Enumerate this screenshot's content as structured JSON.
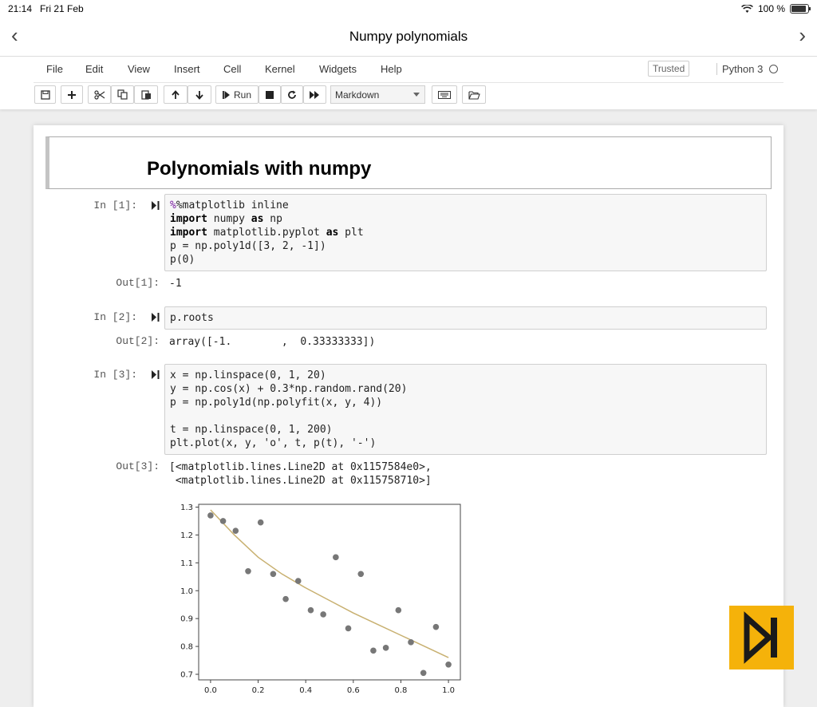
{
  "status": {
    "time": "21:14",
    "date": "Fri 21 Feb",
    "battery": "100 %"
  },
  "nav": {
    "title": "Numpy polynomials",
    "back": "‹",
    "forward": "›"
  },
  "menu": [
    "File",
    "Edit",
    "View",
    "Insert",
    "Cell",
    "Kernel",
    "Widgets",
    "Help"
  ],
  "header": {
    "trusted": "Trusted",
    "kernel": "Python 3"
  },
  "toolbar": {
    "run_label": "Run",
    "cell_type": "Markdown"
  },
  "notebook": {
    "heading": "Polynomials with numpy",
    "cells": [
      {
        "in_prompt": "In [1]:",
        "code": [
          "%matplotlib inline",
          "import numpy as np",
          "import matplotlib.pyplot as plt",
          "p = np.poly1d([3, 2, -1])",
          "p(0)"
        ],
        "out_prompt": "Out[1]:",
        "output": [
          "-1"
        ]
      },
      {
        "in_prompt": "In [2]:",
        "code": [
          "p.roots"
        ],
        "out_prompt": "Out[2]:",
        "output": [
          "array([-1.        ,  0.33333333])"
        ]
      },
      {
        "in_prompt": "In [3]:",
        "code": [
          "x = np.linspace(0, 1, 20)",
          "y = np.cos(x) + 0.3*np.random.rand(20)",
          "p = np.poly1d(np.polyfit(x, y, 4))",
          "",
          "t = np.linspace(0, 1, 200)",
          "plt.plot(x, y, 'o', t, p(t), '-')"
        ],
        "out_prompt": "Out[3]:",
        "output": [
          "[<matplotlib.lines.Line2D at 0x1157584e0>,",
          " <matplotlib.lines.Line2D at 0x115758710>]"
        ]
      }
    ]
  },
  "chart_data": {
    "type": "scatter",
    "xlim": [
      -0.05,
      1.05
    ],
    "ylim": [
      0.68,
      1.31
    ],
    "xticks": [
      "0.0",
      "0.2",
      "0.4",
      "0.6",
      "0.8",
      "1.0"
    ],
    "xtick_values": [
      0,
      0.2,
      0.4,
      0.6,
      0.8,
      1.0
    ],
    "yticks": [
      "0.7",
      "0.8",
      "0.9",
      "1.0",
      "1.1",
      "1.2",
      "1.3"
    ],
    "ytick_values": [
      0.7,
      0.8,
      0.9,
      1.0,
      1.1,
      1.2,
      1.3
    ],
    "series": [
      {
        "kind": "points",
        "color": "#777777",
        "x": [
          0.0,
          0.0526,
          0.1053,
          0.1579,
          0.2105,
          0.2632,
          0.3158,
          0.3684,
          0.4211,
          0.4737,
          0.5263,
          0.5789,
          0.6316,
          0.6842,
          0.7368,
          0.7895,
          0.8421,
          0.8947,
          0.9474,
          1.0
        ],
        "y": [
          1.27,
          1.25,
          1.215,
          1.07,
          1.245,
          1.06,
          0.97,
          1.035,
          0.93,
          0.915,
          1.12,
          0.865,
          1.06,
          0.785,
          0.795,
          0.93,
          0.815,
          0.705,
          0.87,
          0.735
        ]
      },
      {
        "kind": "line",
        "color": "#c8b070",
        "x": [
          0,
          0.1,
          0.2,
          0.3,
          0.4,
          0.5,
          0.6,
          0.7,
          0.8,
          0.9,
          1.0
        ],
        "y": [
          1.29,
          1.2,
          1.12,
          1.06,
          1.01,
          0.965,
          0.92,
          0.88,
          0.84,
          0.8,
          0.76
        ]
      }
    ]
  },
  "colors": {
    "logo_bg": "#f5b20a",
    "logo_fg": "#1a1a1a"
  }
}
